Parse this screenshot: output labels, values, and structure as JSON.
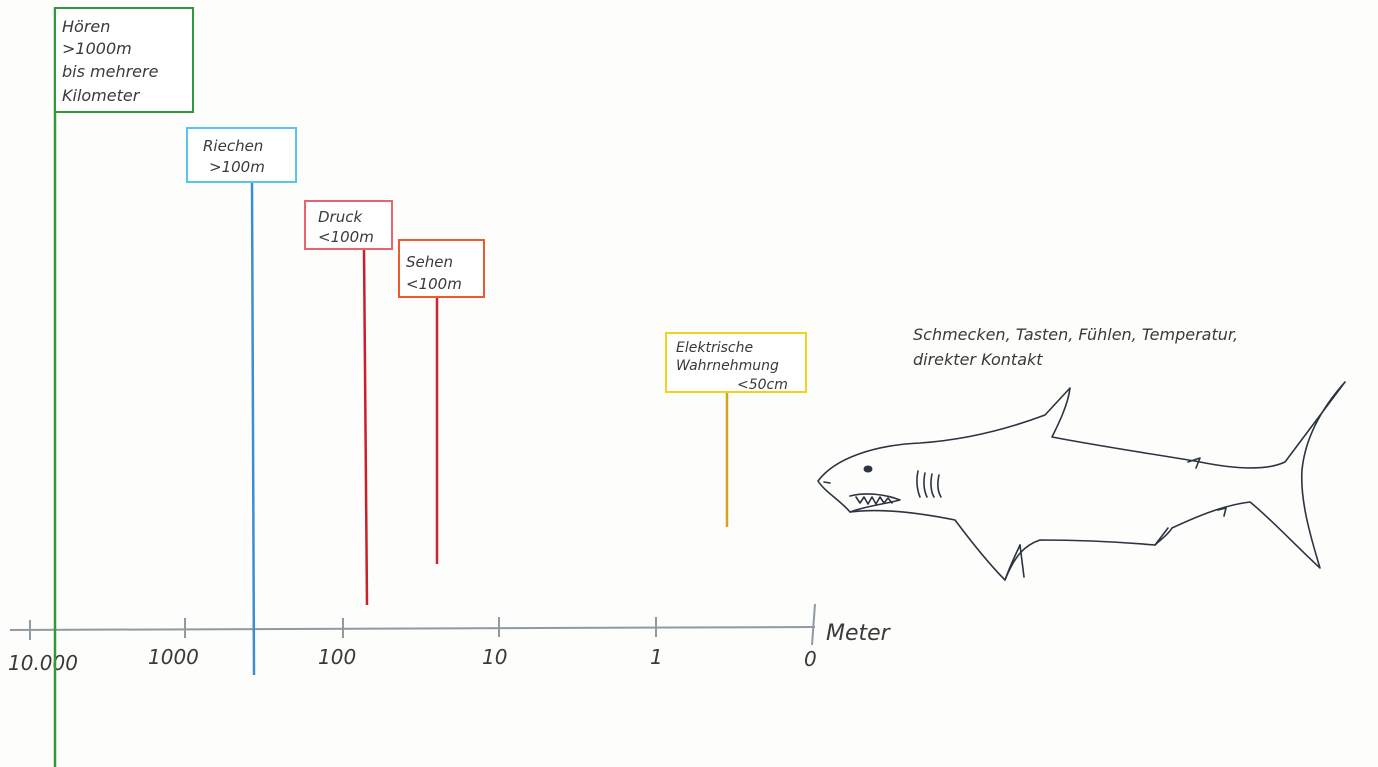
{
  "colors": {
    "hearing": "#2f9a3a",
    "smell": "#58c6ea",
    "smell_line": "#3b8fd0",
    "pressure": "#e8636e",
    "pressure_line": "#c9202b",
    "sight": "#ef5a2c",
    "sight_line": "#d1232a",
    "electric": "#f2d21a",
    "electric_line": "#d2a521",
    "axis": "#8f9aa3",
    "ink": "#333333"
  },
  "axis": {
    "unit": "Meter",
    "ticks": [
      "10.000",
      "1000",
      "100",
      "10",
      "1",
      "0"
    ]
  },
  "senses": [
    {
      "lines": [
        "Hören",
        ">1000m",
        "bis mehrere",
        "Kilometer"
      ]
    },
    {
      "lines": [
        "Riechen",
        ">100m"
      ]
    },
    {
      "lines": [
        "Druck",
        "<100m"
      ]
    },
    {
      "lines": [
        "Sehen",
        "<100m"
      ]
    },
    {
      "lines": [
        "Elektrische",
        "Wahrnehmung",
        "<50cm"
      ]
    }
  ],
  "contact_note": [
    "Schmecken, Tasten, Fühlen, Temperatur,",
    "direkter Kontakt"
  ],
  "illustration": "shark-drawing"
}
